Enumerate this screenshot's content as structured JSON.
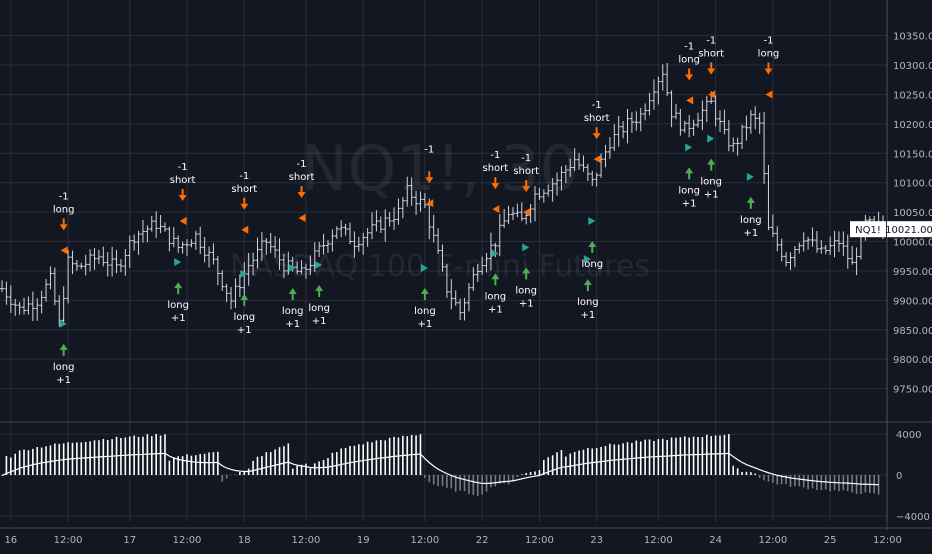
{
  "watermark": {
    "symbol": "NQ1!, 30",
    "name": "NASDAQ 100 E-mini Futures"
  },
  "price_badge": {
    "symbol": "NQ1!",
    "value": "10021.00"
  },
  "colors": {
    "background": "#131722",
    "grid": "#2a2e39",
    "candle": "#d1d4dc",
    "long": "#26a69a",
    "long_arrow": "#4caf50",
    "short": "#ff6d00",
    "axis_text": "#b2b5be",
    "badge_bg": "#ffffff"
  },
  "chart_data": [
    {
      "type": "ohlc",
      "series_name": "NQ1!",
      "ylim": [
        9700,
        10380
      ],
      "y_ticks": [
        9750,
        9800,
        9850,
        9900,
        9950,
        10000,
        10050,
        10100,
        10150,
        10200,
        10250,
        10300,
        10350
      ],
      "y_tick_labels": [
        "9750.00",
        "9800.00",
        "9850.00",
        "9900.00",
        "9950.00",
        "10000.00",
        "10050.00",
        "10100.00",
        "10150.00",
        "10200.00",
        "10250.00",
        "10300.00",
        "10350.00"
      ],
      "x_range": [
        0,
        200
      ],
      "x_ticks": [
        {
          "i": 2,
          "label": "16"
        },
        {
          "i": 15,
          "label": "12:00"
        },
        {
          "i": 29,
          "label": "17"
        },
        {
          "i": 42,
          "label": "12:00"
        },
        {
          "i": 55,
          "label": "18"
        },
        {
          "i": 69,
          "label": "12:00"
        },
        {
          "i": 82,
          "label": "19"
        },
        {
          "i": 96,
          "label": "12:00"
        },
        {
          "i": 109,
          "label": "22"
        },
        {
          "i": 122,
          "label": "12:00"
        },
        {
          "i": 135,
          "label": "23"
        },
        {
          "i": 149,
          "label": "12:00"
        },
        {
          "i": 162,
          "label": "24"
        },
        {
          "i": 175,
          "label": "12:00"
        },
        {
          "i": 188,
          "label": "25"
        },
        {
          "i": 201,
          "label": "12:00"
        }
      ],
      "close_anchors": [
        [
          0,
          9920
        ],
        [
          4,
          9885
        ],
        [
          8,
          9900
        ],
        [
          11,
          9935
        ],
        [
          13,
          9860
        ],
        [
          15,
          9965
        ],
        [
          17,
          9955
        ],
        [
          22,
          9975
        ],
        [
          26,
          9955
        ],
        [
          30,
          10010
        ],
        [
          35,
          10030
        ],
        [
          40,
          9990
        ],
        [
          44,
          10010
        ],
        [
          48,
          9965
        ],
        [
          52,
          9900
        ],
        [
          56,
          9960
        ],
        [
          60,
          10000
        ],
        [
          64,
          9960
        ],
        [
          68,
          9945
        ],
        [
          72,
          9985
        ],
        [
          76,
          10025
        ],
        [
          80,
          10000
        ],
        [
          86,
          10030
        ],
        [
          90,
          10050
        ],
        [
          92,
          10085
        ],
        [
          96,
          10060
        ],
        [
          98,
          10005
        ],
        [
          101,
          9920
        ],
        [
          104,
          9880
        ],
        [
          108,
          9960
        ],
        [
          112,
          10000
        ],
        [
          115,
          10050
        ],
        [
          118,
          10035
        ],
        [
          121,
          10080
        ],
        [
          126,
          10105
        ],
        [
          130,
          10140
        ],
        [
          134,
          10100
        ],
        [
          138,
          10170
        ],
        [
          142,
          10200
        ],
        [
          145,
          10215
        ],
        [
          148,
          10265
        ],
        [
          150,
          10290
        ],
        [
          152,
          10220
        ],
        [
          155,
          10190
        ],
        [
          158,
          10215
        ],
        [
          161,
          10235
        ],
        [
          164,
          10180
        ],
        [
          166,
          10160
        ],
        [
          170,
          10210
        ],
        [
          172,
          10200
        ],
        [
          174,
          10020
        ],
        [
          178,
          9970
        ],
        [
          182,
          10010
        ],
        [
          186,
          9980
        ],
        [
          190,
          10000
        ],
        [
          193,
          9960
        ],
        [
          196,
          10030
        ],
        [
          200,
          10021
        ]
      ],
      "signals": [
        {
          "i": 14,
          "dir": "long",
          "price": 9860,
          "label": "long",
          "qty": "+1"
        },
        {
          "i": 14,
          "dir": "short",
          "price": 9985,
          "label": "long",
          "qty": "-1"
        },
        {
          "i": 40,
          "dir": "long",
          "price": 9965,
          "label": "long",
          "qty": "+1"
        },
        {
          "i": 41,
          "dir": "short",
          "price": 10035,
          "label": "short",
          "qty": "-1"
        },
        {
          "i": 55,
          "dir": "long",
          "price": 9945,
          "label": "long",
          "qty": "+1"
        },
        {
          "i": 55,
          "dir": "short",
          "price": 10020,
          "label": "short",
          "qty": "-1"
        },
        {
          "i": 66,
          "dir": "long",
          "price": 9955,
          "label": "long",
          "qty": "+1"
        },
        {
          "i": 68,
          "dir": "short",
          "price": 10040,
          "label": "short",
          "qty": "-1"
        },
        {
          "i": 72,
          "dir": "long",
          "price": 9960,
          "label": "long",
          "qty": "+1"
        },
        {
          "i": 96,
          "dir": "long",
          "price": 9955,
          "label": "long",
          "qty": "+1"
        },
        {
          "i": 97,
          "dir": "short",
          "price": 10065,
          "label": "",
          "qty": "-1"
        },
        {
          "i": 112,
          "dir": "long",
          "price": 9980,
          "label": "long",
          "qty": "+1"
        },
        {
          "i": 112,
          "dir": "short",
          "price": 10055,
          "label": "short",
          "qty": "-1"
        },
        {
          "i": 119,
          "dir": "long",
          "price": 9990,
          "label": "long",
          "qty": "+1"
        },
        {
          "i": 119,
          "dir": "short",
          "price": 10050,
          "label": "short",
          "qty": "-1"
        },
        {
          "i": 133,
          "dir": "long",
          "price": 9970,
          "label": "long",
          "qty": "+1"
        },
        {
          "i": 135,
          "dir": "short",
          "price": 10140,
          "label": "short",
          "qty": "-1"
        },
        {
          "i": 134,
          "dir": "long",
          "price": 10035,
          "label": "long",
          "qty": ""
        },
        {
          "i": 156,
          "dir": "long",
          "price": 10160,
          "label": "long",
          "qty": "+1"
        },
        {
          "i": 156,
          "dir": "short",
          "price": 10240,
          "label": "long",
          "qty": "-1"
        },
        {
          "i": 161,
          "dir": "long",
          "price": 10175,
          "label": "long",
          "qty": "+1"
        },
        {
          "i": 161,
          "dir": "short",
          "price": 10250,
          "label": "short",
          "qty": "-1"
        },
        {
          "i": 170,
          "dir": "long",
          "price": 10110,
          "label": "long",
          "qty": "+1"
        },
        {
          "i": 174,
          "dir": "short",
          "price": 10250,
          "label": "long",
          "qty": "-1"
        }
      ]
    },
    {
      "type": "bar",
      "series_name": "oscillator",
      "ylim": [
        -4600,
        4600
      ],
      "y_ticks": [
        4000,
        0,
        -4000
      ],
      "y_tick_labels": [
        "4000",
        "0",
        "−4000"
      ],
      "x_range": [
        0,
        200
      ],
      "regimes": [
        {
          "from": 0,
          "to": 2,
          "start": 0,
          "end": 1800
        },
        {
          "from": 2,
          "to": 38,
          "start": 1800,
          "end": 4000
        },
        {
          "from": 38,
          "to": 50,
          "start": 1500,
          "end": 2200
        },
        {
          "from": 50,
          "to": 56,
          "start": -700,
          "end": 300
        },
        {
          "from": 56,
          "to": 66,
          "start": 500,
          "end": 3000
        },
        {
          "from": 66,
          "to": 70,
          "start": 600,
          "end": 1200
        },
        {
          "from": 70,
          "to": 74,
          "start": 700,
          "end": 1400
        },
        {
          "from": 74,
          "to": 96,
          "start": 1600,
          "end": 4000
        },
        {
          "from": 96,
          "to": 110,
          "start": -200,
          "end": -2000
        },
        {
          "from": 110,
          "to": 116,
          "start": -1500,
          "end": -800
        },
        {
          "from": 116,
          "to": 122,
          "start": -600,
          "end": 400
        },
        {
          "from": 122,
          "to": 128,
          "start": 600,
          "end": 2400
        },
        {
          "from": 128,
          "to": 166,
          "start": 1800,
          "end": 4000
        },
        {
          "from": 166,
          "to": 172,
          "start": 800,
          "end": 200
        },
        {
          "from": 172,
          "to": 200,
          "start": -200,
          "end": -1900
        }
      ]
    }
  ]
}
